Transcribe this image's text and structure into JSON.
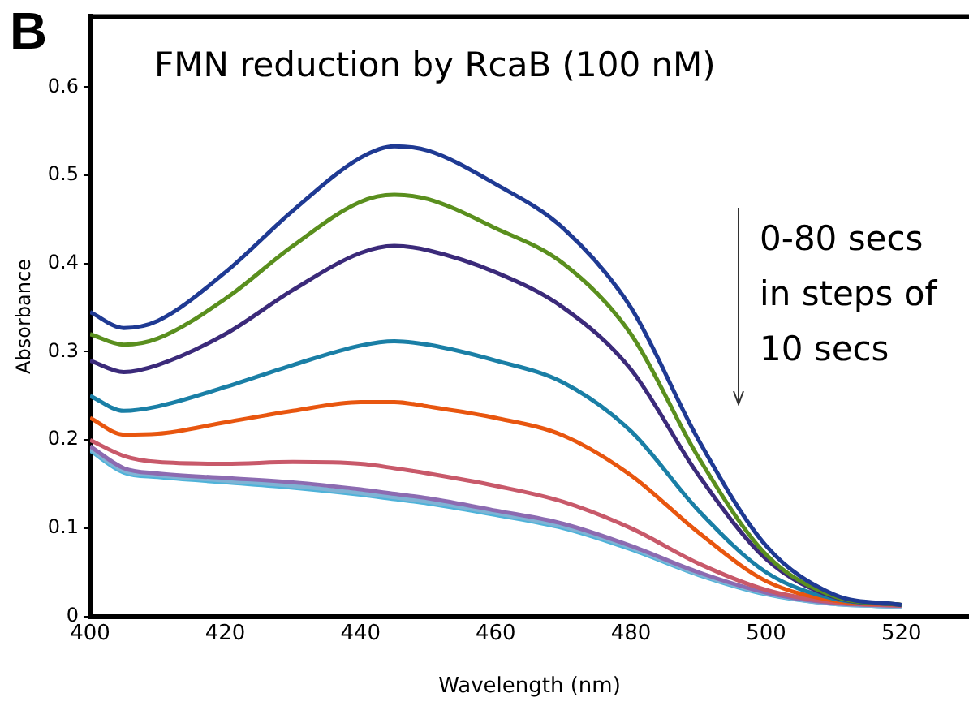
{
  "chart_data": {
    "type": "line",
    "title": "FMN reduction by RcaB (100 nM)",
    "xlabel": "Wavelength (nm)",
    "ylabel": "Absorbance",
    "annotations": [
      "B",
      "0-80 secs\nin steps of\n10 secs"
    ],
    "x": [
      400,
      405,
      410,
      420,
      430,
      440,
      445,
      450,
      460,
      470,
      480,
      490,
      500,
      510,
      520
    ],
    "xlim": [
      400,
      530
    ],
    "xticks": [
      400,
      420,
      440,
      460,
      480,
      500,
      520
    ],
    "ylim": [
      0,
      0.68
    ],
    "yticks": [
      0,
      0.1,
      0.2,
      0.3,
      0.4,
      0.5,
      0.6
    ],
    "grid": false,
    "legend": false,
    "marker": "none",
    "line_style": "solid",
    "series": [
      {
        "color": "#1f3a93",
        "values": [
          0.345,
          0.327,
          0.335,
          0.39,
          0.46,
          0.52,
          0.533,
          0.528,
          0.49,
          0.44,
          0.35,
          0.2,
          0.08,
          0.025,
          0.013
        ]
      },
      {
        "color": "#5a8f1e",
        "values": [
          0.32,
          0.308,
          0.315,
          0.36,
          0.42,
          0.47,
          0.478,
          0.473,
          0.44,
          0.4,
          0.32,
          0.18,
          0.07,
          0.023,
          0.013
        ]
      },
      {
        "color": "#3b2a7a",
        "values": [
          0.29,
          0.277,
          0.285,
          0.32,
          0.37,
          0.412,
          0.42,
          0.415,
          0.39,
          0.35,
          0.28,
          0.16,
          0.065,
          0.022,
          0.013
        ]
      },
      {
        "color": "#1a7fa6",
        "values": [
          0.25,
          0.233,
          0.238,
          0.26,
          0.285,
          0.307,
          0.312,
          0.308,
          0.29,
          0.265,
          0.21,
          0.12,
          0.05,
          0.02,
          0.013
        ]
      },
      {
        "color": "#e8560f",
        "values": [
          0.225,
          0.206,
          0.207,
          0.22,
          0.233,
          0.243,
          0.243,
          0.238,
          0.225,
          0.205,
          0.16,
          0.095,
          0.04,
          0.018,
          0.013
        ]
      },
      {
        "color": "#c8596a",
        "values": [
          0.2,
          0.182,
          0.175,
          0.173,
          0.175,
          0.173,
          0.168,
          0.162,
          0.148,
          0.13,
          0.1,
          0.06,
          0.03,
          0.016,
          0.012
        ]
      },
      {
        "color": "#8c6bb1",
        "values": [
          0.193,
          0.168,
          0.162,
          0.157,
          0.152,
          0.144,
          0.139,
          0.134,
          0.12,
          0.105,
          0.08,
          0.05,
          0.027,
          0.015,
          0.012
        ]
      },
      {
        "color": "#7fb3d5",
        "values": [
          0.19,
          0.165,
          0.16,
          0.154,
          0.148,
          0.14,
          0.135,
          0.13,
          0.117,
          0.102,
          0.078,
          0.048,
          0.026,
          0.014,
          0.011
        ]
      },
      {
        "color": "#4fb3d9",
        "values": [
          0.188,
          0.163,
          0.158,
          0.152,
          0.146,
          0.138,
          0.133,
          0.128,
          0.115,
          0.1,
          0.076,
          0.047,
          0.025,
          0.014,
          0.011
        ]
      }
    ]
  }
}
